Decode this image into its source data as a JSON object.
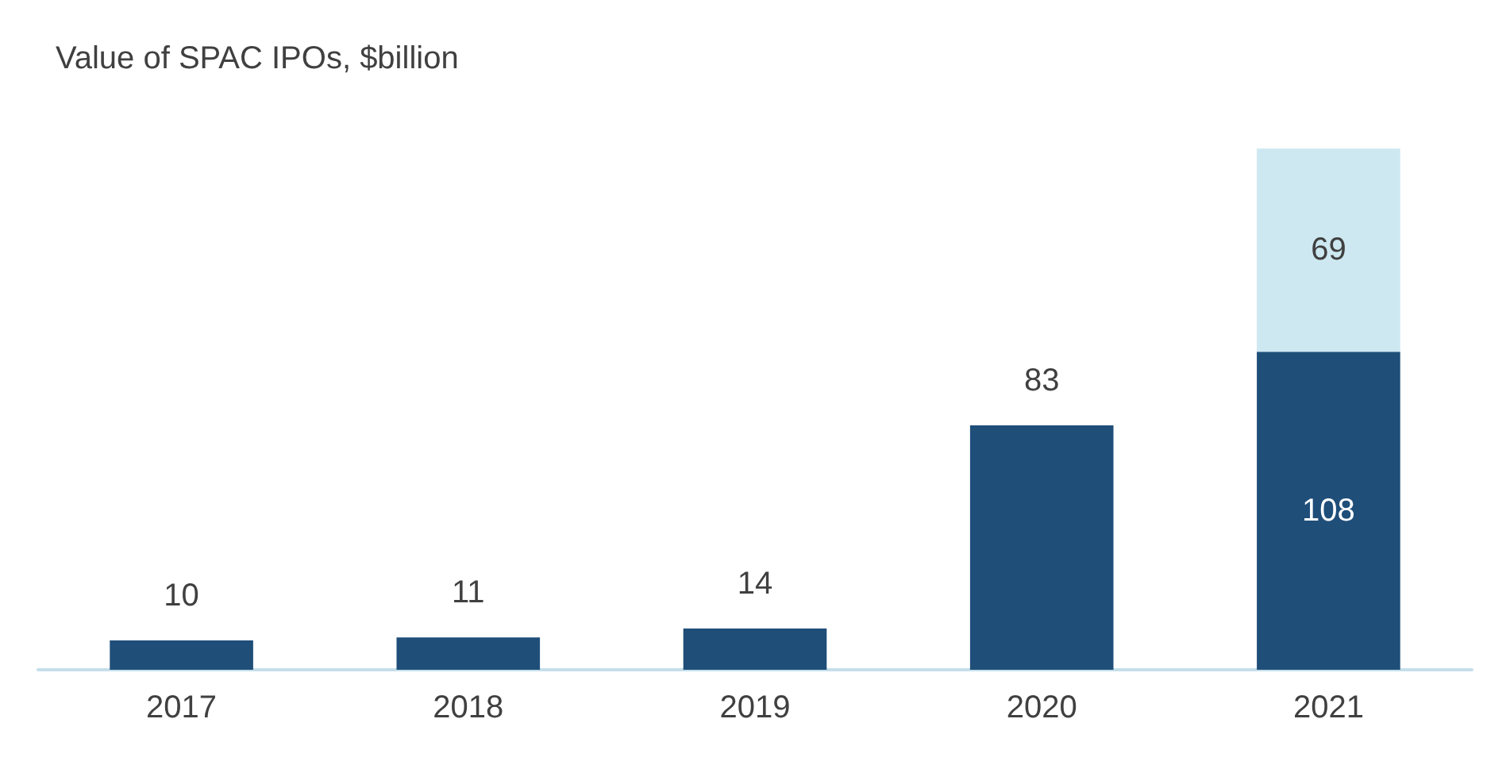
{
  "chart_data": {
    "type": "bar",
    "title": "Value of SPAC IPOs, $billion",
    "categories": [
      "2017",
      "2018",
      "2019",
      "2020",
      "2021"
    ],
    "stacked": true,
    "data_labels": true,
    "series": [
      {
        "color": "#1f4e79",
        "values": [
          10,
          11,
          14,
          83,
          108
        ]
      },
      {
        "color": "#cde8f1",
        "values": [
          null,
          null,
          null,
          null,
          69
        ]
      }
    ]
  }
}
